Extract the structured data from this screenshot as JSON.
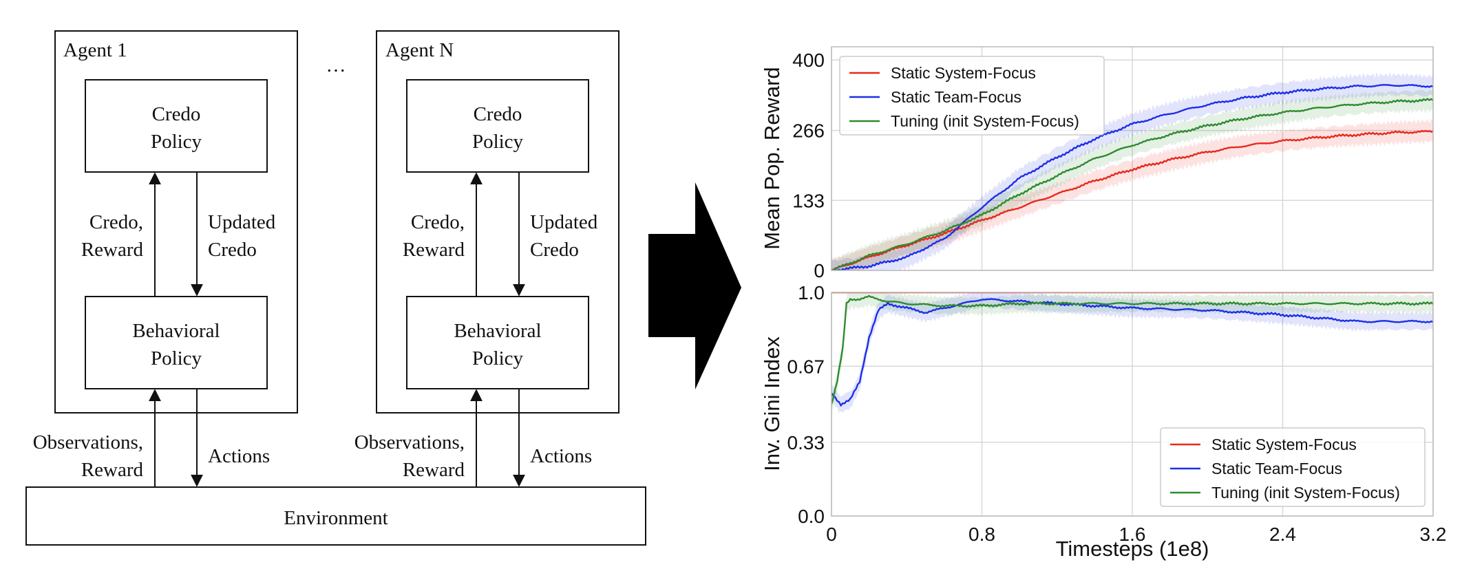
{
  "diagram": {
    "agents": [
      {
        "title": "Agent 1",
        "credo_policy": [
          "Credo",
          "Policy"
        ],
        "up_label": [
          "Credo,",
          "Reward"
        ],
        "down_label": [
          "Updated",
          "Credo"
        ],
        "behavioral_policy": [
          "Behavioral",
          "Policy"
        ],
        "obs_label": [
          "Observations,",
          "Reward"
        ],
        "actions_label": "Actions"
      },
      {
        "title": "Agent N",
        "credo_policy": [
          "Credo",
          "Policy"
        ],
        "up_label": [
          "Credo,",
          "Reward"
        ],
        "down_label": [
          "Updated",
          "Credo"
        ],
        "behavioral_policy": [
          "Behavioral",
          "Policy"
        ],
        "obs_label": [
          "Observations,",
          "Reward"
        ],
        "actions_label": "Actions"
      }
    ],
    "ellipsis": "…",
    "environment": "Environment"
  },
  "chart_data": [
    {
      "type": "line",
      "ylabel": "Mean Pop. Reward",
      "xlim": [
        0,
        3.2
      ],
      "ylim": [
        0,
        425
      ],
      "yticks": [
        "0",
        "133",
        "266",
        "400"
      ],
      "ytick_values": [
        0,
        133,
        266,
        400
      ],
      "grid": true,
      "legend": "top-left",
      "series": [
        {
          "name": "Static System-Focus",
          "color": "#e8291c",
          "x": [
            0,
            0.2,
            0.4,
            0.6,
            0.8,
            1.0,
            1.2,
            1.4,
            1.6,
            1.8,
            2.0,
            2.2,
            2.4,
            2.6,
            2.8,
            3.0,
            3.2
          ],
          "y": [
            0,
            25,
            48,
            70,
            95,
            120,
            145,
            170,
            192,
            210,
            225,
            237,
            246,
            253,
            258,
            262,
            264
          ]
        },
        {
          "name": "Static Team-Focus",
          "color": "#1c2fe8",
          "x": [
            0,
            0.2,
            0.4,
            0.6,
            0.8,
            1.0,
            1.2,
            1.4,
            1.6,
            1.8,
            2.0,
            2.2,
            2.4,
            2.6,
            2.8,
            3.0,
            3.2
          ],
          "y": [
            0,
            8,
            25,
            60,
            120,
            175,
            215,
            250,
            278,
            298,
            315,
            328,
            338,
            345,
            350,
            352,
            350
          ]
        },
        {
          "name": "Tuning (init System-Focus)",
          "color": "#2e8b2e",
          "x": [
            0,
            0.2,
            0.4,
            0.6,
            0.8,
            1.0,
            1.2,
            1.4,
            1.6,
            1.8,
            2.0,
            2.2,
            2.4,
            2.6,
            2.8,
            3.0,
            3.2
          ],
          "y": [
            0,
            28,
            50,
            75,
            105,
            145,
            180,
            212,
            238,
            258,
            275,
            289,
            300,
            309,
            316,
            321,
            324
          ]
        }
      ]
    },
    {
      "type": "line",
      "xlabel": "Timesteps (1e8)",
      "ylabel": "Inv. Gini Index",
      "xlim": [
        0,
        3.2
      ],
      "ylim": [
        0,
        1.0
      ],
      "xticks": [
        "0",
        "0.8",
        "1.6",
        "2.4",
        "3.2"
      ],
      "xtick_values": [
        0,
        0.8,
        1.6,
        2.4,
        3.2
      ],
      "yticks": [
        "0.0",
        "0.33",
        "0.67",
        "1.0"
      ],
      "ytick_values": [
        0,
        0.33,
        0.67,
        1.0
      ],
      "grid": true,
      "legend": "bottom-right",
      "series": [
        {
          "name": "Static System-Focus",
          "color": "#e8291c",
          "x": [
            0,
            3.2
          ],
          "y": [
            1.0,
            1.0
          ]
        },
        {
          "name": "Static Team-Focus",
          "color": "#1c2fe8",
          "x": [
            0,
            0.05,
            0.1,
            0.15,
            0.2,
            0.25,
            0.3,
            0.4,
            0.5,
            0.6,
            0.8,
            1.0,
            1.2,
            1.6,
            2.0,
            2.4,
            2.8,
            3.2
          ],
          "y": [
            0.55,
            0.5,
            0.52,
            0.6,
            0.8,
            0.92,
            0.95,
            0.93,
            0.91,
            0.93,
            0.97,
            0.96,
            0.95,
            0.93,
            0.92,
            0.9,
            0.87,
            0.87
          ]
        },
        {
          "name": "Tuning (init System-Focus)",
          "color": "#2e8b2e",
          "x": [
            0,
            0.03,
            0.06,
            0.08,
            0.1,
            0.15,
            0.2,
            0.3,
            0.4,
            0.6,
            0.8,
            1.0,
            1.2,
            1.6,
            2.0,
            2.4,
            2.8,
            3.2
          ],
          "y": [
            0.5,
            0.6,
            0.75,
            0.95,
            0.97,
            0.97,
            0.98,
            0.96,
            0.95,
            0.94,
            0.94,
            0.95,
            0.95,
            0.95,
            0.95,
            0.95,
            0.95,
            0.95
          ]
        }
      ]
    }
  ]
}
